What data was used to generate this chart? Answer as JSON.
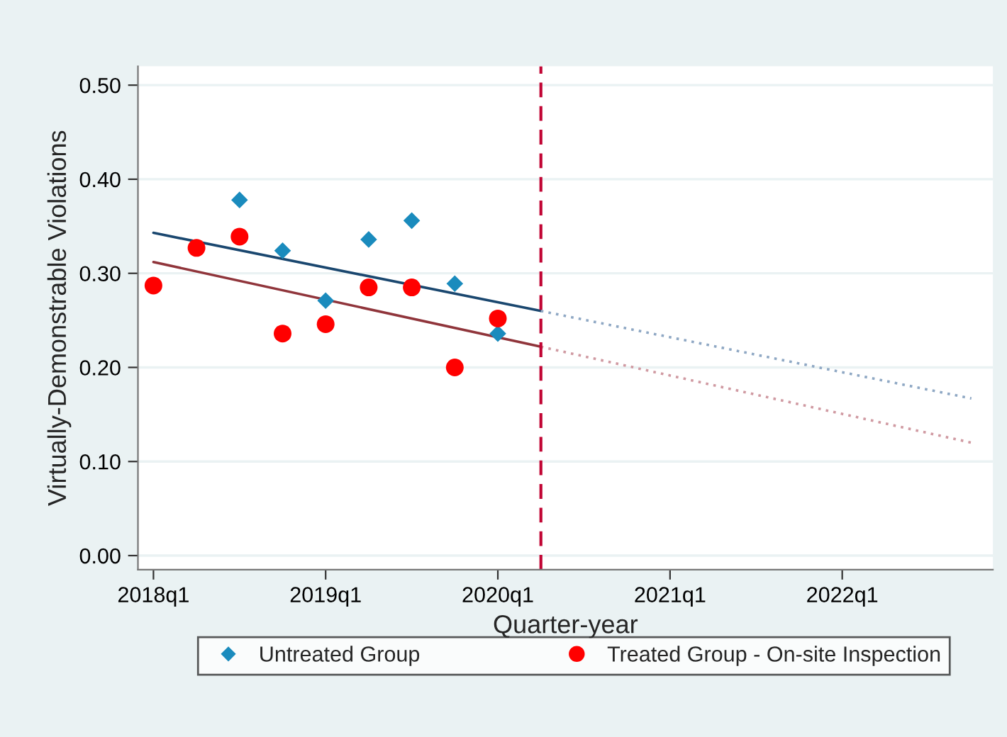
{
  "chart_data": {
    "type": "scatter",
    "xlabel": "Quarter-year",
    "ylabel": "Virtually-Demonstrable Violations",
    "categories": [
      "2018q1",
      null,
      null,
      null,
      "2019q1",
      null,
      null,
      null,
      "2020q1",
      null,
      null,
      null,
      "2021q1",
      null,
      null,
      null,
      "2022q1",
      null,
      null,
      null
    ],
    "ylim": [
      -0.015,
      0.52
    ],
    "yticks": [
      {
        "value": 0,
        "label": "0.00"
      },
      {
        "value": 0.1,
        "label": "0.10"
      },
      {
        "value": 0.2,
        "label": "0.20"
      },
      {
        "value": 0.3,
        "label": "0.30"
      },
      {
        "value": 0.4,
        "label": "0.40"
      },
      {
        "value": 0.5,
        "label": "0.50"
      }
    ],
    "grid": "y",
    "legend": "bottom",
    "series": [
      {
        "name": "Untreated Group",
        "marker": "diamond",
        "color": "#1a8bbd",
        "values": [
          null,
          null,
          0.378,
          0.324,
          0.271,
          0.336,
          0.356,
          0.289,
          0.236,
          null,
          null,
          null,
          null,
          null,
          null,
          null,
          null,
          null,
          null,
          null
        ]
      },
      {
        "name": "Treated Group - On-site Inspection",
        "marker": "circle",
        "color": "#ff0000",
        "values": [
          0.287,
          0.327,
          0.339,
          0.236,
          0.246,
          0.285,
          0.285,
          0.2,
          0.252,
          null,
          null,
          null,
          null,
          null,
          null,
          null,
          null,
          null,
          null,
          null
        ]
      },
      {
        "type": "line",
        "line_style": "solid",
        "color": "#1a476f",
        "values": [
          0.343,
          null,
          null,
          null,
          null,
          null,
          null,
          null,
          null,
          0.26,
          null,
          null,
          null,
          null,
          null,
          null,
          null,
          null,
          null,
          null
        ]
      },
      {
        "type": "line",
        "line_style": "solid",
        "color": "#90353b",
        "values": [
          0.312,
          null,
          null,
          null,
          null,
          null,
          null,
          null,
          null,
          0.222,
          null,
          null,
          null,
          null,
          null,
          null,
          null,
          null,
          null,
          null
        ]
      },
      {
        "type": "line",
        "line_style": "dotted",
        "color": "#8fa8c4",
        "values": [
          null,
          null,
          null,
          null,
          null,
          null,
          null,
          null,
          null,
          0.26,
          null,
          null,
          null,
          null,
          null,
          null,
          null,
          null,
          null,
          0.167
        ]
      },
      {
        "type": "line",
        "line_style": "dotted",
        "color": "#d09aa2",
        "values": [
          null,
          null,
          null,
          null,
          null,
          null,
          null,
          null,
          null,
          0.222,
          null,
          null,
          null,
          null,
          null,
          null,
          null,
          null,
          null,
          0.12
        ]
      }
    ]
  }
}
